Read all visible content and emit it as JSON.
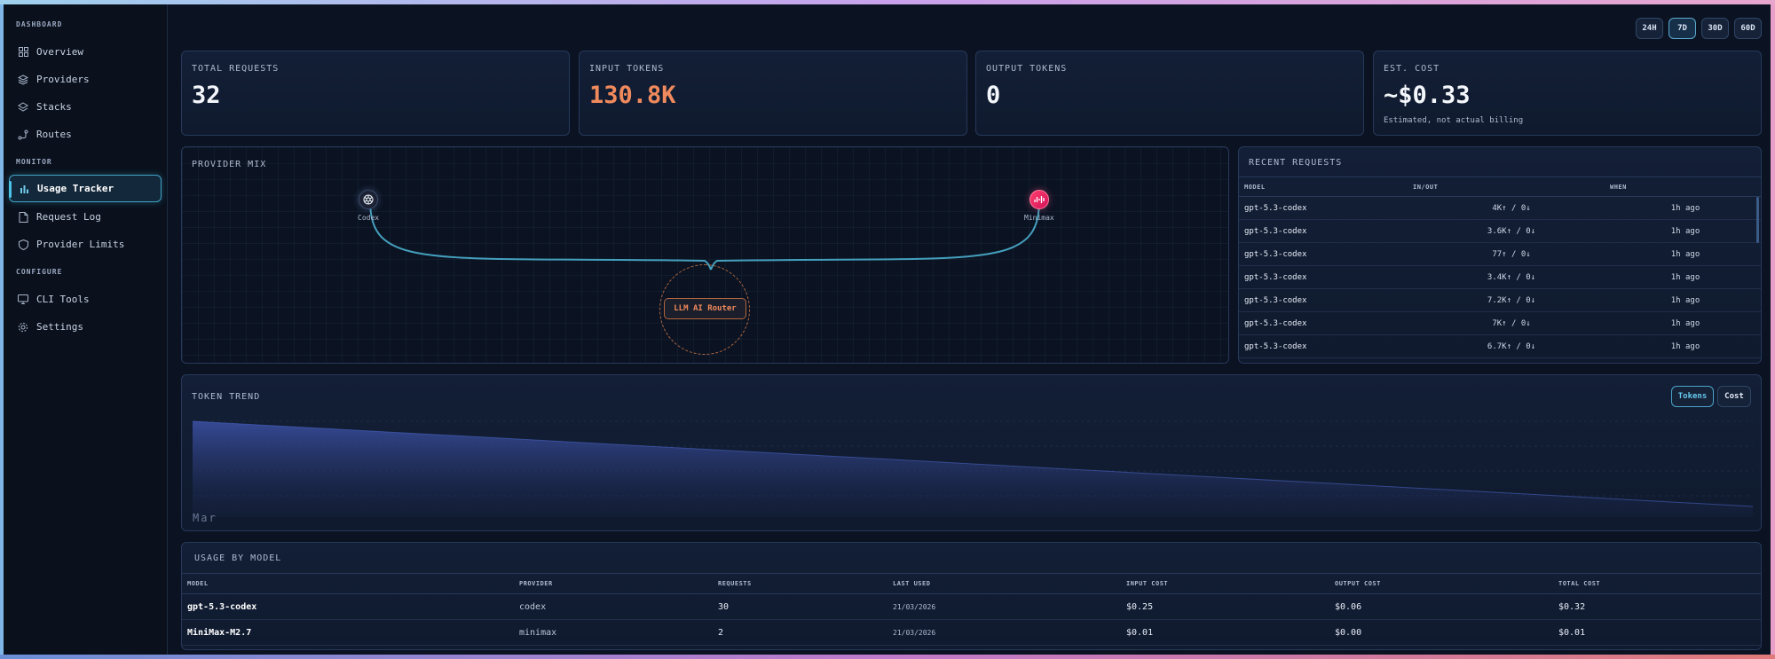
{
  "sidebar": {
    "sections": [
      {
        "label": "DASHBOARD",
        "items": [
          {
            "label": "Overview",
            "icon": "grid-icon"
          },
          {
            "label": "Providers",
            "icon": "layers-icon"
          },
          {
            "label": "Stacks",
            "icon": "stack-icon"
          },
          {
            "label": "Routes",
            "icon": "route-icon"
          }
        ]
      },
      {
        "label": "MONITOR",
        "items": [
          {
            "label": "Usage Tracker",
            "icon": "bar-chart-icon",
            "active": true
          },
          {
            "label": "Request Log",
            "icon": "document-icon"
          },
          {
            "label": "Provider Limits",
            "icon": "shield-icon"
          }
        ]
      },
      {
        "label": "CONFIGURE",
        "items": [
          {
            "label": "CLI Tools",
            "icon": "monitor-icon"
          },
          {
            "label": "Settings",
            "icon": "gear-icon"
          }
        ]
      }
    ]
  },
  "range": {
    "options": [
      "24H",
      "7D",
      "30D",
      "60D"
    ],
    "selected": "7D"
  },
  "stats": [
    {
      "label": "TOTAL REQUESTS",
      "value": "32",
      "sub": ""
    },
    {
      "label": "INPUT TOKENS",
      "value": "130.8K",
      "sub": ""
    },
    {
      "label": "OUTPUT TOKENS",
      "value": "0",
      "sub": ""
    },
    {
      "label": "EST. COST",
      "value": "~$0.33",
      "sub": "Estimated, not actual billing"
    }
  ],
  "provider_mix": {
    "title": "PROVIDER MIX",
    "providers": [
      {
        "name": "Codex",
        "icon": "openai-icon"
      },
      {
        "name": "Minimax",
        "icon": "minimax-icon"
      }
    ],
    "router_label": "LLM AI Router"
  },
  "recent_requests": {
    "title": "RECENT REQUESTS",
    "columns": [
      "MODEL",
      "IN/OUT",
      "WHEN"
    ],
    "rows": [
      {
        "model": "gpt-5.3-codex",
        "inout": "4K↑ / 0↓",
        "when": "1h ago"
      },
      {
        "model": "gpt-5.3-codex",
        "inout": "3.6K↑ / 0↓",
        "when": "1h ago"
      },
      {
        "model": "gpt-5.3-codex",
        "inout": "77↑ / 0↓",
        "when": "1h ago"
      },
      {
        "model": "gpt-5.3-codex",
        "inout": "3.4K↑ / 0↓",
        "when": "1h ago"
      },
      {
        "model": "gpt-5.3-codex",
        "inout": "7.2K↑ / 0↓",
        "when": "1h ago"
      },
      {
        "model": "gpt-5.3-codex",
        "inout": "7K↑ / 0↓",
        "when": "1h ago"
      },
      {
        "model": "gpt-5.3-codex",
        "inout": "6.7K↑ / 0↓",
        "when": "1h ago"
      }
    ]
  },
  "token_trend": {
    "title": "TOKEN TREND",
    "toggles": [
      "Tokens",
      "Cost"
    ],
    "selected": "Tokens",
    "x_tick": "Mar",
    "accent": "#3a4fa0"
  },
  "usage_by_model": {
    "title": "USAGE BY MODEL",
    "columns": [
      "MODEL",
      "PROVIDER",
      "REQUESTS",
      "LAST USED",
      "INPUT COST",
      "OUTPUT COST",
      "TOTAL COST"
    ],
    "rows": [
      {
        "model": "gpt-5.3-codex",
        "provider": "codex",
        "requests": "30",
        "last_used": "21/03/2026",
        "input_cost": "$0.25",
        "output_cost": "$0.06",
        "total_cost": "$0.32"
      },
      {
        "model": "MiniMax-M2.7",
        "provider": "minimax",
        "requests": "2",
        "last_used": "21/03/2026",
        "input_cost": "$0.01",
        "output_cost": "$0.00",
        "total_cost": "$0.01"
      }
    ]
  }
}
